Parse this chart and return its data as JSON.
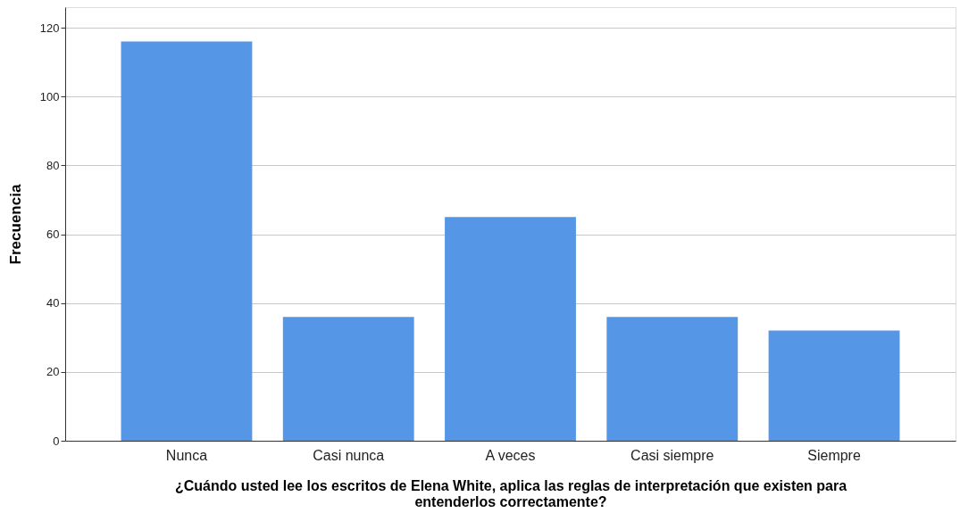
{
  "chart_data": {
    "type": "bar",
    "categories": [
      "Nunca",
      "Casi nunca",
      "A veces",
      "Casi siempre",
      "Siempre"
    ],
    "values": [
      116,
      36,
      65,
      36,
      32
    ],
    "color": "#5596e6",
    "xlabel": "¿Cuándo usted lee los escritos de Elena White, aplica las reglas de interpretación que existen para entenderlos correctamente?",
    "ylabel": "Frecuencia",
    "ylim": [
      0,
      126
    ],
    "yticks": [
      0,
      20,
      40,
      60,
      80,
      100,
      120
    ],
    "grid": "y"
  }
}
